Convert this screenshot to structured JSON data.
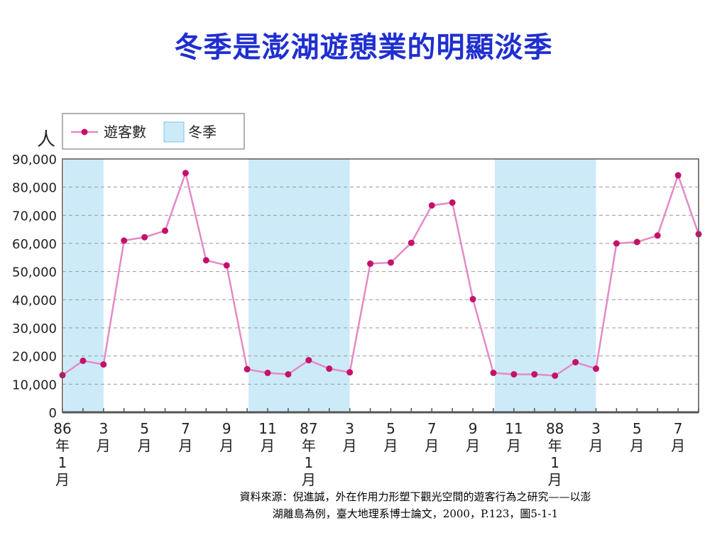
{
  "title": "冬季是澎湖遊憩業的明顯淡季",
  "source": {
    "line1": "資料來源：倪進誠，外在作用力形塑下觀光空間的遊客行為之研究——以澎",
    "line2": "湖離島為例，臺大地理系博士論文，2000，P.123，圖5-1-1"
  },
  "chart_data": {
    "type": "line",
    "ylabel": "人",
    "ylim": [
      0,
      90000
    ],
    "yticks": [
      0,
      10000,
      20000,
      30000,
      40000,
      50000,
      60000,
      70000,
      80000,
      90000
    ],
    "ytick_labels": [
      "0",
      "10,000",
      "20,000",
      "30,000",
      "40,000",
      "50,000",
      "60,000",
      "70,000",
      "80,000",
      "90,000"
    ],
    "grid": true,
    "legend": {
      "position": "top-left",
      "line_label": "遊客數",
      "shade_label": "冬季"
    },
    "x_labels": [
      {
        "index": 0,
        "lines": [
          "86",
          "年",
          "1",
          "月"
        ]
      },
      {
        "index": 2,
        "lines": [
          "3",
          "月"
        ]
      },
      {
        "index": 4,
        "lines": [
          "5",
          "月"
        ]
      },
      {
        "index": 6,
        "lines": [
          "7",
          "月"
        ]
      },
      {
        "index": 8,
        "lines": [
          "9",
          "月"
        ]
      },
      {
        "index": 10,
        "lines": [
          "11",
          "月"
        ]
      },
      {
        "index": 12,
        "lines": [
          "87",
          "年",
          "1",
          "月"
        ]
      },
      {
        "index": 14,
        "lines": [
          "3",
          "月"
        ]
      },
      {
        "index": 16,
        "lines": [
          "5",
          "月"
        ]
      },
      {
        "index": 18,
        "lines": [
          "7",
          "月"
        ]
      },
      {
        "index": 20,
        "lines": [
          "9",
          "月"
        ]
      },
      {
        "index": 22,
        "lines": [
          "11",
          "月"
        ]
      },
      {
        "index": 24,
        "lines": [
          "88",
          "年",
          "1",
          "月"
        ]
      },
      {
        "index": 26,
        "lines": [
          "3",
          "月"
        ]
      },
      {
        "index": 28,
        "lines": [
          "5",
          "月"
        ]
      },
      {
        "index": 30,
        "lines": [
          "7",
          "月"
        ]
      }
    ],
    "winter_ranges": [
      [
        0,
        2
      ],
      [
        9,
        14
      ],
      [
        21,
        26
      ]
    ],
    "series": [
      {
        "name": "遊客數",
        "values": [
          13200,
          18300,
          17000,
          61000,
          62200,
          64500,
          85000,
          54000,
          52200,
          15300,
          14000,
          13500,
          18500,
          15500,
          14200,
          52800,
          53200,
          60200,
          73500,
          74500,
          40200,
          14000,
          13500,
          13500,
          13000,
          17800,
          15500,
          60000,
          60500,
          62800,
          84200,
          63300
        ]
      }
    ],
    "colors": {
      "line": "#e48ac6",
      "marker": "#c4116b",
      "winter_fill": "#cdeaf8",
      "winter_stroke": "#7cc4ea",
      "grid": "#9a9a9a",
      "axis": "#555555"
    }
  }
}
